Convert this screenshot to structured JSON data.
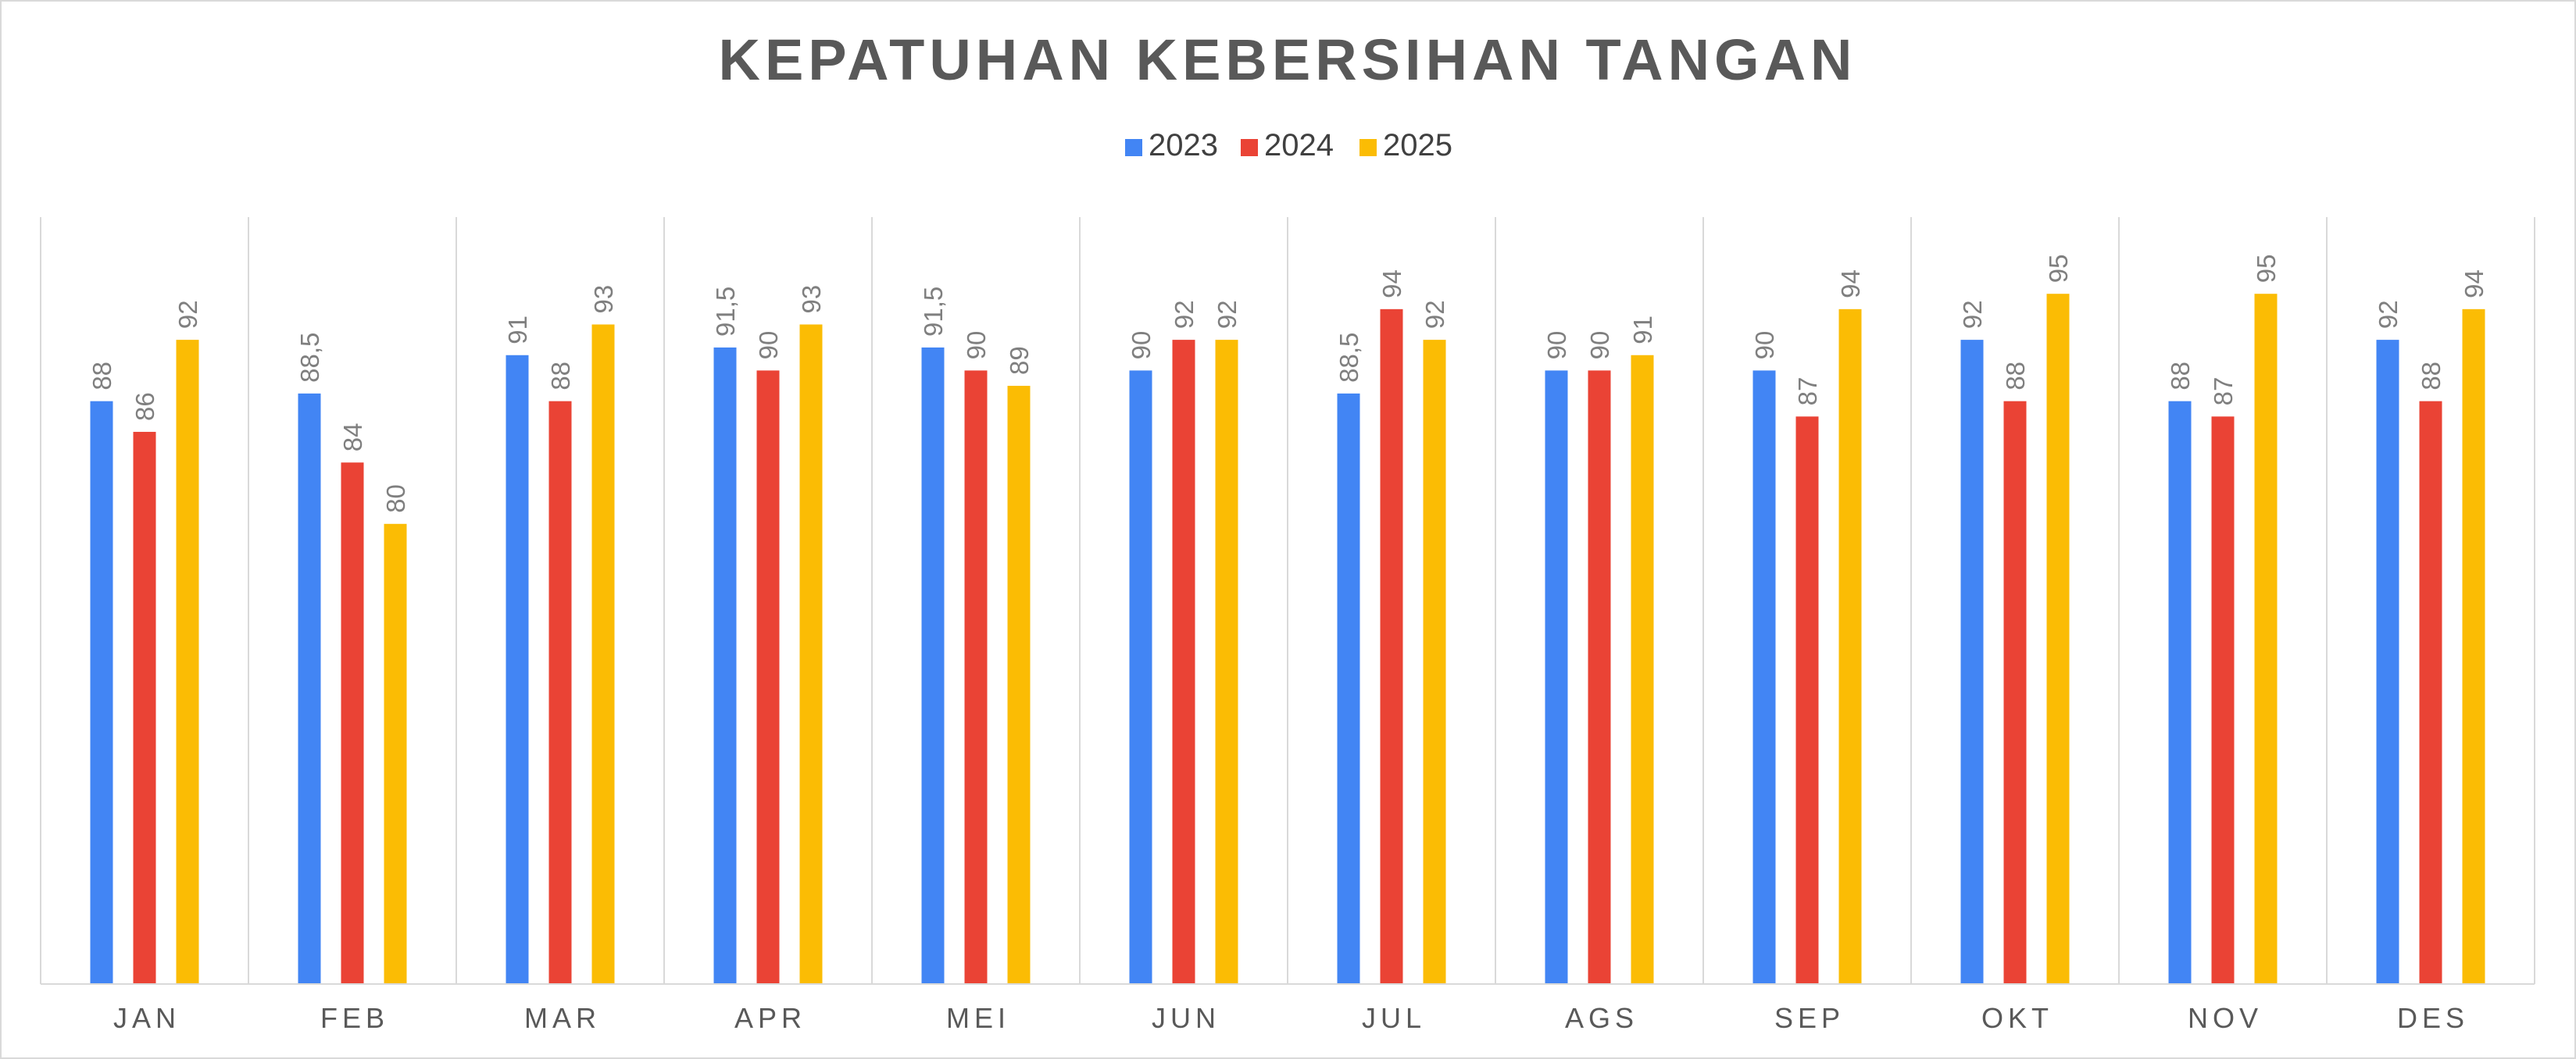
{
  "chart_data": {
    "type": "bar",
    "title": "KEPATUHAN KEBERSIHAN TANGAN",
    "xlabel": "",
    "ylabel": "",
    "ylim": [
      50,
      100
    ],
    "legend_position": "top-center",
    "grid": {
      "vertical_category_separators": true,
      "horizontal": false
    },
    "categories": [
      "JAN",
      "FEB",
      "MAR",
      "APR",
      "MEI",
      "JUN",
      "JUL",
      "AGS",
      "SEP",
      "OKT",
      "NOV",
      "DES"
    ],
    "series": [
      {
        "name": "2023",
        "color": "#4285F4",
        "values": [
          88,
          88.5,
          91,
          91.5,
          91.5,
          90,
          88.5,
          90,
          90,
          92,
          88,
          92
        ],
        "labels": [
          "88",
          "88,5",
          "91",
          "91,5",
          "91,5",
          "90",
          "88,5",
          "90",
          "90",
          "92",
          "88",
          "92"
        ]
      },
      {
        "name": "2024",
        "color": "#EA4335",
        "values": [
          86,
          84,
          88,
          90,
          90,
          92,
          94,
          90,
          87,
          88,
          87,
          88
        ],
        "labels": [
          "86",
          "84",
          "88",
          "90",
          "90",
          "92",
          "94",
          "90",
          "87",
          "88",
          "87",
          "88"
        ]
      },
      {
        "name": "2025",
        "color": "#FBBC04",
        "values": [
          92,
          80,
          93,
          93,
          89,
          92,
          92,
          91,
          94,
          95,
          95,
          94
        ],
        "labels": [
          "92",
          "80",
          "93",
          "93",
          "89",
          "92",
          "92",
          "91",
          "94",
          "95",
          "95",
          "94"
        ]
      }
    ]
  }
}
